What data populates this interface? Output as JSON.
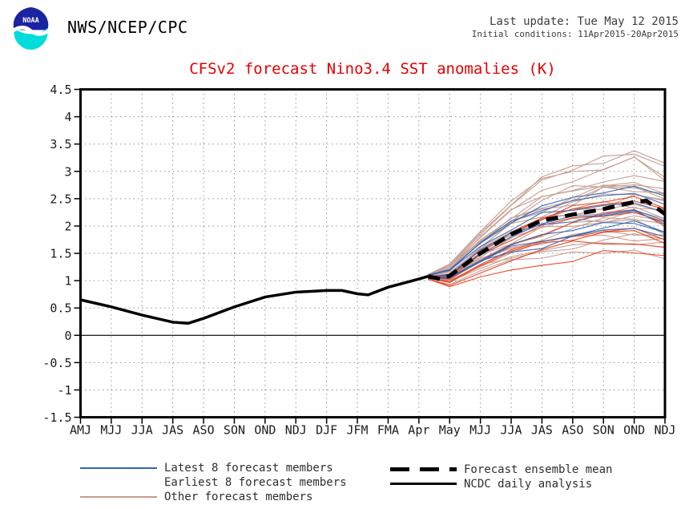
{
  "header": {
    "logo_text": "NOAA",
    "agency": "NWS/NCEP/CPC",
    "last_update": "Last update: Tue May 12 2015",
    "initial_conditions": "Initial conditions: 11Apr2015-20Apr2015"
  },
  "colors": {
    "title": "#e60000",
    "grid": "#909090",
    "axis": "#000000",
    "background": "#ffffff",
    "logo_blue": "#1a23a0",
    "logo_cyan": "#00dcdc",
    "latest_members": "#3465b4",
    "earliest_members": "#e8421c",
    "other_members": "#c49a8e"
  },
  "chart_data": {
    "type": "line",
    "title": "CFSv2 forecast Nino3.4 SST anomalies (K)",
    "xlabel": "",
    "ylabel": "",
    "ylim": [
      -1.5,
      4.5
    ],
    "y_tick_step": 0.5,
    "grid": "dotted",
    "x_tick_labels": [
      "AMJ",
      "MJJ",
      "JJA",
      "JAS",
      "ASO",
      "SON",
      "OND",
      "NDJ",
      "DJF",
      "JFM",
      "FMA",
      "Apr",
      "May",
      "MJJ",
      "JJA",
      "JAS",
      "ASO",
      "SON",
      "OND",
      "NDJ"
    ],
    "y_tick_labels": [
      "4.5",
      "4",
      "3.5",
      "3",
      "2.5",
      "2",
      "1.5",
      "1",
      "0.5",
      "0",
      "-0.5",
      "-1",
      "-1.5"
    ],
    "series": [
      {
        "name": "NCDC daily analysis",
        "style": "solid",
        "color": "#000000",
        "width": 3.5,
        "x": [
          0,
          1,
          2,
          3,
          3.5,
          4,
          5,
          6,
          7,
          8,
          8.5,
          9,
          9.35,
          10,
          11,
          11.3
        ],
        "values": [
          0.65,
          0.52,
          0.37,
          0.24,
          0.22,
          0.31,
          0.52,
          0.7,
          0.79,
          0.82,
          0.82,
          0.76,
          0.74,
          0.88,
          1.03,
          1.08
        ]
      },
      {
        "name": "Forecast ensemble mean",
        "style": "dashed",
        "color": "#000000",
        "width": 5,
        "x": [
          11.3,
          11.7,
          12,
          13,
          14,
          15,
          16,
          17,
          18,
          18.4,
          19
        ],
        "values": [
          1.08,
          1.03,
          1.09,
          1.5,
          1.85,
          2.1,
          2.21,
          2.31,
          2.44,
          2.46,
          2.22
        ]
      }
    ],
    "ensemble_groups": [
      {
        "name": "Other forecast members",
        "color": "#c49a8e",
        "count": 24,
        "x": [
          11.3,
          12,
          13,
          14,
          15,
          16,
          17,
          18,
          19
        ],
        "min": [
          1.02,
          0.92,
          1.15,
          1.3,
          1.4,
          1.48,
          1.5,
          1.48,
          1.4
        ],
        "max": [
          1.12,
          1.32,
          1.95,
          2.5,
          2.9,
          3.1,
          3.28,
          3.4,
          3.15
        ]
      },
      {
        "name": "Earliest 8 forecast members",
        "color": "#e8421c",
        "count": 8,
        "x": [
          11.3,
          12,
          13,
          14,
          15,
          16,
          17,
          18,
          19
        ],
        "min": [
          1.02,
          0.88,
          1.02,
          1.15,
          1.28,
          1.35,
          1.42,
          1.48,
          1.32
        ],
        "max": [
          1.1,
          1.12,
          1.6,
          2.0,
          2.3,
          2.5,
          2.62,
          2.66,
          2.5
        ]
      },
      {
        "name": "Latest 8 forecast members",
        "color": "#3465b4",
        "count": 8,
        "x": [
          11.3,
          12,
          13,
          14,
          15,
          16,
          17,
          18,
          19
        ],
        "min": [
          1.03,
          1.0,
          1.25,
          1.45,
          1.55,
          1.65,
          1.72,
          1.78,
          1.58
        ],
        "max": [
          1.12,
          1.25,
          1.8,
          2.2,
          2.48,
          2.62,
          2.76,
          2.82,
          2.62
        ]
      }
    ],
    "legend_position": "bottom"
  },
  "legend": {
    "left": [
      {
        "label": "Latest 8 forecast members",
        "swatch": "line",
        "color": "#3465b4",
        "thickness": 2
      },
      {
        "label": "Earliest 8 forecast members",
        "swatch": "none",
        "color": "#e8421c",
        "thickness": 2
      },
      {
        "label": "Other forecast members",
        "swatch": "line",
        "color": "#c8988c",
        "thickness": 2
      }
    ],
    "right": [
      {
        "label": "Forecast ensemble mean",
        "swatch": "dashed-line",
        "color": "#000000",
        "thickness": 5
      },
      {
        "label": "NCDC daily analysis",
        "swatch": "line",
        "color": "#000000",
        "thickness": 3
      }
    ]
  }
}
